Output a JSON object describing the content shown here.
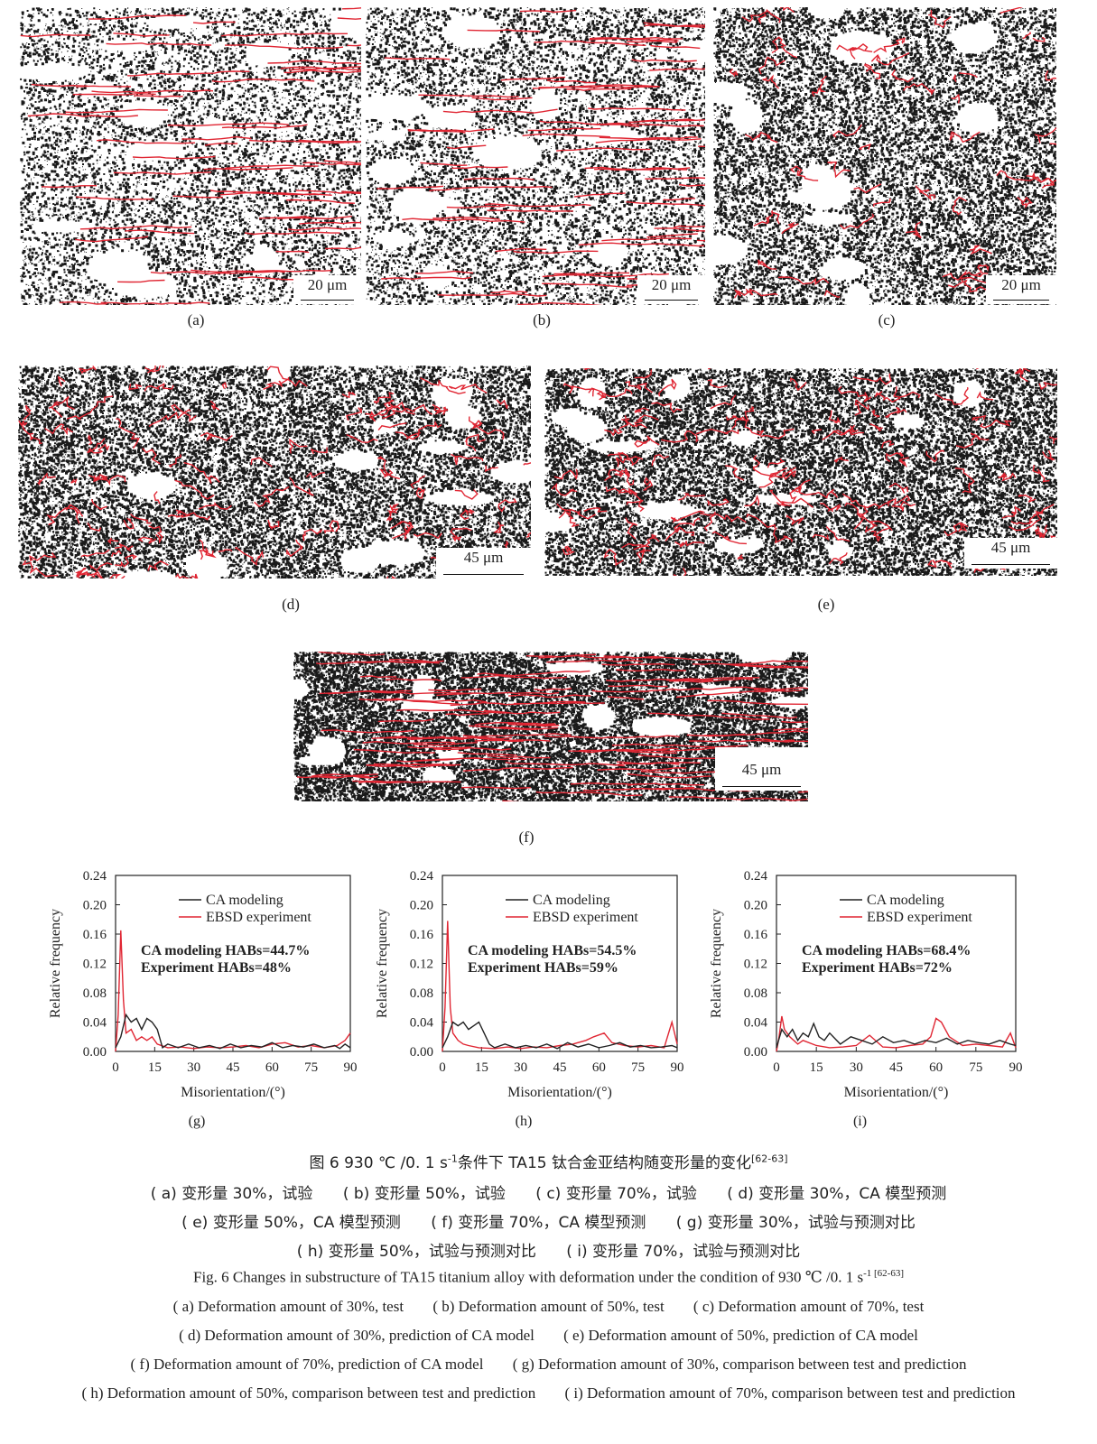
{
  "micro_panels": [
    {
      "id": "a",
      "label": "(a)",
      "scale": "20 μm"
    },
    {
      "id": "b",
      "label": "(b)",
      "scale": "20 μm"
    },
    {
      "id": "c",
      "label": "(c)",
      "scale": "20 μm"
    },
    {
      "id": "d",
      "label": "(d)",
      "scale": "45 μm"
    },
    {
      "id": "e",
      "label": "(e)",
      "scale": "45 μm"
    },
    {
      "id": "f",
      "label": "(f)",
      "scale": "45 μm"
    }
  ],
  "colors": {
    "boundary_black": "#1a1a1a",
    "boundary_red": "#e02633",
    "ca_line": "#222222",
    "ebsd_line": "#e02633"
  },
  "chart_data": [
    {
      "type": "line",
      "panel_label": "(g)",
      "xlabel": "Misorientation/(°)",
      "ylabel": "Relative frequency",
      "xlim": [
        0,
        90
      ],
      "ylim": [
        0,
        0.24
      ],
      "xticks": [
        "0",
        "15",
        "30",
        "45",
        "60",
        "75",
        "90"
      ],
      "yticks": [
        "0.00",
        "0.04",
        "0.08",
        "0.12",
        "0.16",
        "0.20",
        "0.24"
      ],
      "legend": [
        "CA modeling",
        "EBSD experiment"
      ],
      "annotations": [
        "CA modeling  HABs=44.7%",
        "Experiment  HABs=48%"
      ],
      "series": [
        {
          "name": "CA modeling",
          "x": [
            0,
            2,
            4,
            6,
            8,
            10,
            12,
            14,
            16,
            18,
            20,
            24,
            28,
            32,
            36,
            40,
            44,
            48,
            52,
            56,
            60,
            64,
            68,
            72,
            76,
            80,
            84,
            86,
            88,
            90
          ],
          "y": [
            0.005,
            0.02,
            0.05,
            0.04,
            0.045,
            0.03,
            0.045,
            0.04,
            0.03,
            0.005,
            0.01,
            0.005,
            0.01,
            0.005,
            0.008,
            0.004,
            0.01,
            0.005,
            0.008,
            0.006,
            0.012,
            0.005,
            0.008,
            0.006,
            0.01,
            0.005,
            0.008,
            0.004,
            0.01,
            0.005
          ]
        },
        {
          "name": "EBSD experiment",
          "x": [
            0,
            1,
            2,
            3,
            4,
            6,
            8,
            10,
            12,
            14,
            16,
            20,
            25,
            30,
            35,
            40,
            45,
            50,
            55,
            60,
            65,
            70,
            75,
            80,
            85,
            88,
            90
          ],
          "y": [
            0.0,
            0.05,
            0.165,
            0.07,
            0.025,
            0.03,
            0.015,
            0.02,
            0.015,
            0.02,
            0.01,
            0.005,
            0.006,
            0.004,
            0.006,
            0.005,
            0.006,
            0.008,
            0.005,
            0.01,
            0.012,
            0.006,
            0.008,
            0.005,
            0.008,
            0.015,
            0.025
          ]
        }
      ]
    },
    {
      "type": "line",
      "panel_label": "(h)",
      "xlabel": "Misorientation/(°)",
      "ylabel": "Relative frequency",
      "xlim": [
        0,
        90
      ],
      "ylim": [
        0,
        0.24
      ],
      "xticks": [
        "0",
        "15",
        "30",
        "45",
        "60",
        "75",
        "90"
      ],
      "yticks": [
        "0.00",
        "0.04",
        "0.08",
        "0.12",
        "0.16",
        "0.20",
        "0.24"
      ],
      "legend": [
        "CA modeling",
        "EBSD experiment"
      ],
      "annotations": [
        "CA modeling  HABs=54.5%",
        "Experiment  HABs=59%"
      ],
      "series": [
        {
          "name": "CA modeling",
          "x": [
            0,
            2,
            4,
            6,
            8,
            10,
            12,
            14,
            16,
            18,
            20,
            24,
            28,
            32,
            36,
            40,
            44,
            48,
            52,
            56,
            60,
            64,
            68,
            72,
            76,
            80,
            84,
            88,
            90
          ],
          "y": [
            0.005,
            0.02,
            0.04,
            0.035,
            0.04,
            0.03,
            0.035,
            0.04,
            0.025,
            0.01,
            0.005,
            0.01,
            0.005,
            0.008,
            0.005,
            0.01,
            0.004,
            0.012,
            0.006,
            0.01,
            0.005,
            0.008,
            0.012,
            0.006,
            0.008,
            0.005,
            0.006,
            0.008,
            0.005
          ]
        },
        {
          "name": "EBSD experiment",
          "x": [
            0,
            1,
            2,
            3,
            4,
            6,
            8,
            10,
            14,
            20,
            25,
            30,
            35,
            40,
            45,
            50,
            55,
            58,
            62,
            65,
            70,
            75,
            80,
            85,
            88,
            90
          ],
          "y": [
            0.0,
            0.06,
            0.178,
            0.06,
            0.025,
            0.015,
            0.01,
            0.008,
            0.005,
            0.004,
            0.006,
            0.004,
            0.006,
            0.005,
            0.008,
            0.01,
            0.015,
            0.02,
            0.025,
            0.012,
            0.008,
            0.006,
            0.008,
            0.005,
            0.04,
            0.01
          ]
        }
      ]
    },
    {
      "type": "line",
      "panel_label": "(i)",
      "xlabel": "Misorientation/(°)",
      "ylabel": "Relative frequency",
      "xlim": [
        0,
        90
      ],
      "ylim": [
        0,
        0.24
      ],
      "xticks": [
        "0",
        "15",
        "30",
        "45",
        "60",
        "75",
        "90"
      ],
      "yticks": [
        "0.00",
        "0.04",
        "0.08",
        "0.12",
        "0.16",
        "0.20",
        "0.24"
      ],
      "legend": [
        "CA modeling",
        "EBSD experiment"
      ],
      "annotations": [
        "CA modeling  HABs=68.4%",
        "Experiment  HABs=72%"
      ],
      "series": [
        {
          "name": "CA modeling",
          "x": [
            0,
            2,
            4,
            6,
            8,
            10,
            12,
            14,
            16,
            18,
            20,
            24,
            28,
            32,
            36,
            40,
            44,
            48,
            52,
            56,
            60,
            64,
            68,
            72,
            76,
            80,
            84,
            88,
            90
          ],
          "y": [
            0.005,
            0.03,
            0.02,
            0.03,
            0.015,
            0.025,
            0.02,
            0.038,
            0.02,
            0.015,
            0.025,
            0.01,
            0.02,
            0.015,
            0.01,
            0.02,
            0.012,
            0.015,
            0.01,
            0.015,
            0.012,
            0.018,
            0.01,
            0.015,
            0.012,
            0.01,
            0.015,
            0.01,
            0.008
          ]
        },
        {
          "name": "EBSD experiment",
          "x": [
            0,
            1,
            2,
            3,
            5,
            8,
            10,
            15,
            20,
            25,
            30,
            35,
            40,
            45,
            50,
            55,
            58,
            60,
            62,
            65,
            70,
            75,
            80,
            85,
            88,
            90
          ],
          "y": [
            0.0,
            0.02,
            0.048,
            0.03,
            0.02,
            0.01,
            0.015,
            0.008,
            0.005,
            0.006,
            0.008,
            0.022,
            0.006,
            0.005,
            0.008,
            0.01,
            0.02,
            0.045,
            0.04,
            0.02,
            0.008,
            0.01,
            0.008,
            0.006,
            0.025,
            0.005
          ]
        }
      ]
    }
  ],
  "caption_cn": {
    "title": "图 6   930 ℃ /0. 1 s",
    "title_sup": "-1",
    "title_rest": "条件下 TA15 钛合金亚结构随变形量的变化",
    "title_ref": "[62-63]",
    "line1": [
      "( a)  变形量 30%，试验",
      "( b)  变形量 50%，试验",
      "( c)  变形量 70%，试验",
      "( d)  变形量 30%，CA 模型预测"
    ],
    "line2": [
      "( e)  变形量 50%，CA 模型预测",
      "( f)  变形量 70%，CA 模型预测",
      "( g)  变形量 30%，试验与预测对比"
    ],
    "line3": [
      "( h)  变形量 50%，试验与预测对比",
      "( i)  变形量 70%，试验与预测对比"
    ]
  },
  "caption_en": {
    "title": "Fig. 6   Changes in substructure of TA15 titanium alloy with deformation under the condition of 930 ℃ /0. 1 s",
    "title_sup": "-1",
    "title_ref": " [62-63]",
    "line1": [
      "( a)  Deformation amount of 30%,  test",
      "( b)  Deformation amount of 50%,  test",
      "( c)  Deformation amount of 70%,  test"
    ],
    "line2": [
      "( d)  Deformation amount of 30%,  prediction of CA model",
      "( e)  Deformation amount of 50%,  prediction of CA model"
    ],
    "line3": [
      "( f)  Deformation amount of 70%,  prediction of CA model",
      "( g)  Deformation amount of 30%,  comparison between test and prediction"
    ],
    "line4": [
      "( h)  Deformation amount of 50%,  comparison between test and prediction",
      "( i)  Deformation amount of 70%,  comparison between test and prediction"
    ]
  }
}
